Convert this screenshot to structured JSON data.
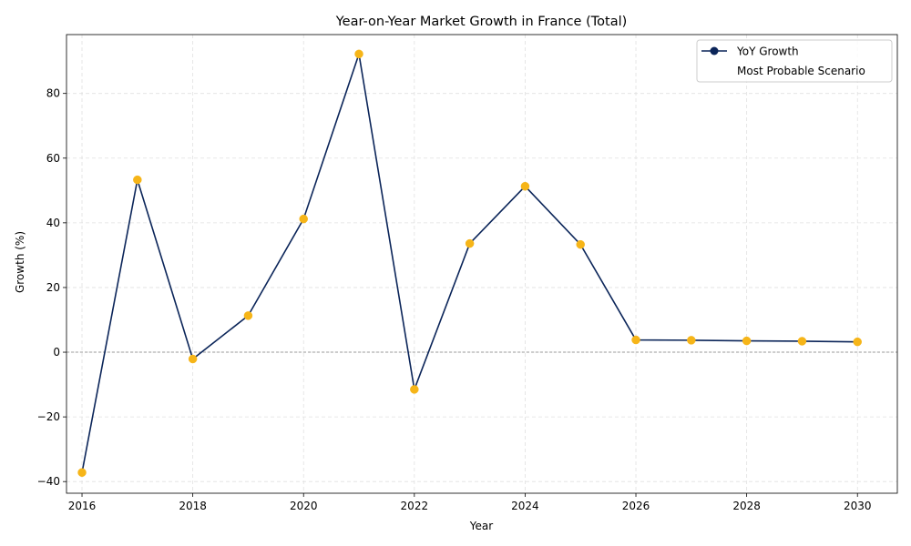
{
  "chart_data": {
    "type": "line",
    "title": "Year-on-Year Market Growth in France (Total)",
    "xlabel": "Year",
    "ylabel": "Growth (%)",
    "x": [
      2016,
      2017,
      2018,
      2019,
      2020,
      2021,
      2022,
      2023,
      2024,
      2025,
      2026,
      2027,
      2028,
      2029,
      2030
    ],
    "series": [
      {
        "name": "YoY Growth",
        "values": [
          -37.2,
          53.3,
          -2.1,
          11.3,
          41.2,
          92.2,
          -11.5,
          33.6,
          51.3,
          33.3,
          3.8,
          3.7,
          3.5,
          3.4,
          3.2
        ]
      }
    ],
    "scenario_label": "Most Probable Scenario",
    "xticks": [
      2016,
      2018,
      2020,
      2022,
      2024,
      2026,
      2028,
      2030
    ],
    "yticks": [
      -40,
      -20,
      0,
      20,
      40,
      60,
      80
    ],
    "xlim": [
      2015.72,
      2030.72
    ],
    "ylim": [
      -43.6,
      98.2
    ],
    "grid": true,
    "zero_line": true,
    "legend_position": "top-right",
    "colors": {
      "line": "#0b2559",
      "marker_fill": "#f6b518",
      "zero_line": "#808080",
      "grid": "#e0e0e0"
    }
  }
}
